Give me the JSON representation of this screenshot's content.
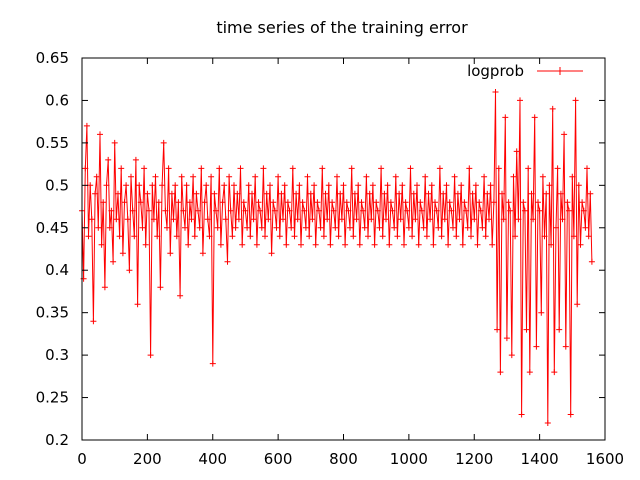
{
  "chart_data": {
    "type": "line",
    "title": "time series of the training error",
    "xlabel": "",
    "ylabel": "",
    "xlim": [
      0,
      1600
    ],
    "ylim": [
      0.2,
      0.65
    ],
    "xticks": [
      0,
      200,
      400,
      600,
      800,
      1000,
      1200,
      1400,
      1600
    ],
    "yticks": [
      0.2,
      0.25,
      0.3,
      0.35,
      0.4,
      0.45,
      0.5,
      0.55,
      0.6,
      0.65
    ],
    "legend_position": "top-right",
    "grid": false,
    "point_marker": "plus",
    "series": [
      {
        "name": "logprob",
        "color": "#ff0000",
        "x_start": 0,
        "x_step": 5,
        "values": [
          0.47,
          0.39,
          0.52,
          0.57,
          0.44,
          0.5,
          0.46,
          0.34,
          0.49,
          0.51,
          0.45,
          0.56,
          0.43,
          0.48,
          0.38,
          0.5,
          0.53,
          0.45,
          0.47,
          0.41,
          0.55,
          0.46,
          0.49,
          0.44,
          0.52,
          0.42,
          0.48,
          0.5,
          0.46,
          0.4,
          0.51,
          0.47,
          0.44,
          0.53,
          0.36,
          0.5,
          0.48,
          0.45,
          0.52,
          0.43,
          0.49,
          0.47,
          0.3,
          0.5,
          0.46,
          0.51,
          0.44,
          0.48,
          0.38,
          0.5,
          0.55,
          0.47,
          0.45,
          0.52,
          0.42,
          0.49,
          0.46,
          0.5,
          0.44,
          0.48,
          0.37,
          0.51,
          0.47,
          0.45,
          0.5,
          0.43,
          0.48,
          0.46,
          0.51,
          0.44,
          0.49,
          0.47,
          0.45,
          0.52,
          0.42,
          0.48,
          0.5,
          0.46,
          0.44,
          0.51,
          0.29,
          0.49,
          0.47,
          0.45,
          0.52,
          0.43,
          0.48,
          0.5,
          0.46,
          0.41,
          0.51,
          0.47,
          0.44,
          0.5,
          0.45,
          0.49,
          0.46,
          0.52,
          0.43,
          0.48,
          0.47,
          0.45,
          0.5,
          0.44,
          0.49,
          0.46,
          0.51,
          0.43,
          0.48,
          0.47,
          0.45,
          0.52,
          0.44,
          0.49,
          0.46,
          0.5,
          0.42,
          0.48,
          0.47,
          0.45,
          0.51,
          0.44,
          0.49,
          0.46,
          0.5,
          0.43,
          0.48,
          0.47,
          0.45,
          0.52,
          0.44,
          0.49,
          0.46,
          0.5,
          0.43,
          0.48,
          0.47,
          0.45,
          0.51,
          0.44,
          0.49,
          0.46,
          0.5,
          0.43,
          0.48,
          0.47,
          0.45,
          0.52,
          0.44,
          0.49,
          0.46,
          0.5,
          0.43,
          0.48,
          0.47,
          0.45,
          0.51,
          0.44,
          0.49,
          0.46,
          0.5,
          0.43,
          0.48,
          0.47,
          0.45,
          0.52,
          0.44,
          0.49,
          0.46,
          0.5,
          0.43,
          0.48,
          0.47,
          0.45,
          0.51,
          0.44,
          0.49,
          0.46,
          0.5,
          0.43,
          0.48,
          0.47,
          0.45,
          0.52,
          0.44,
          0.49,
          0.46,
          0.5,
          0.43,
          0.48,
          0.47,
          0.45,
          0.51,
          0.44,
          0.49,
          0.46,
          0.5,
          0.43,
          0.48,
          0.47,
          0.45,
          0.52,
          0.44,
          0.49,
          0.46,
          0.5,
          0.43,
          0.48,
          0.47,
          0.45,
          0.51,
          0.44,
          0.49,
          0.46,
          0.5,
          0.43,
          0.48,
          0.47,
          0.45,
          0.52,
          0.44,
          0.49,
          0.46,
          0.5,
          0.43,
          0.48,
          0.47,
          0.45,
          0.51,
          0.44,
          0.49,
          0.46,
          0.5,
          0.43,
          0.48,
          0.47,
          0.45,
          0.52,
          0.44,
          0.49,
          0.46,
          0.5,
          0.43,
          0.48,
          0.47,
          0.45,
          0.51,
          0.44,
          0.49,
          0.46,
          0.5,
          0.43,
          0.48,
          0.61,
          0.33,
          0.52,
          0.28,
          0.49,
          0.46,
          0.58,
          0.32,
          0.48,
          0.47,
          0.3,
          0.51,
          0.44,
          0.54,
          0.46,
          0.6,
          0.23,
          0.48,
          0.47,
          0.33,
          0.52,
          0.28,
          0.49,
          0.46,
          0.58,
          0.31,
          0.48,
          0.47,
          0.35,
          0.51,
          0.44,
          0.49,
          0.22,
          0.5,
          0.43,
          0.59,
          0.28,
          0.45,
          0.52,
          0.33,
          0.49,
          0.46,
          0.56,
          0.31,
          0.48,
          0.47,
          0.23,
          0.51,
          0.44,
          0.6,
          0.36,
          0.5,
          0.43,
          0.48,
          0.47,
          0.45,
          0.52,
          0.44,
          0.49,
          0.41
        ]
      }
    ]
  }
}
